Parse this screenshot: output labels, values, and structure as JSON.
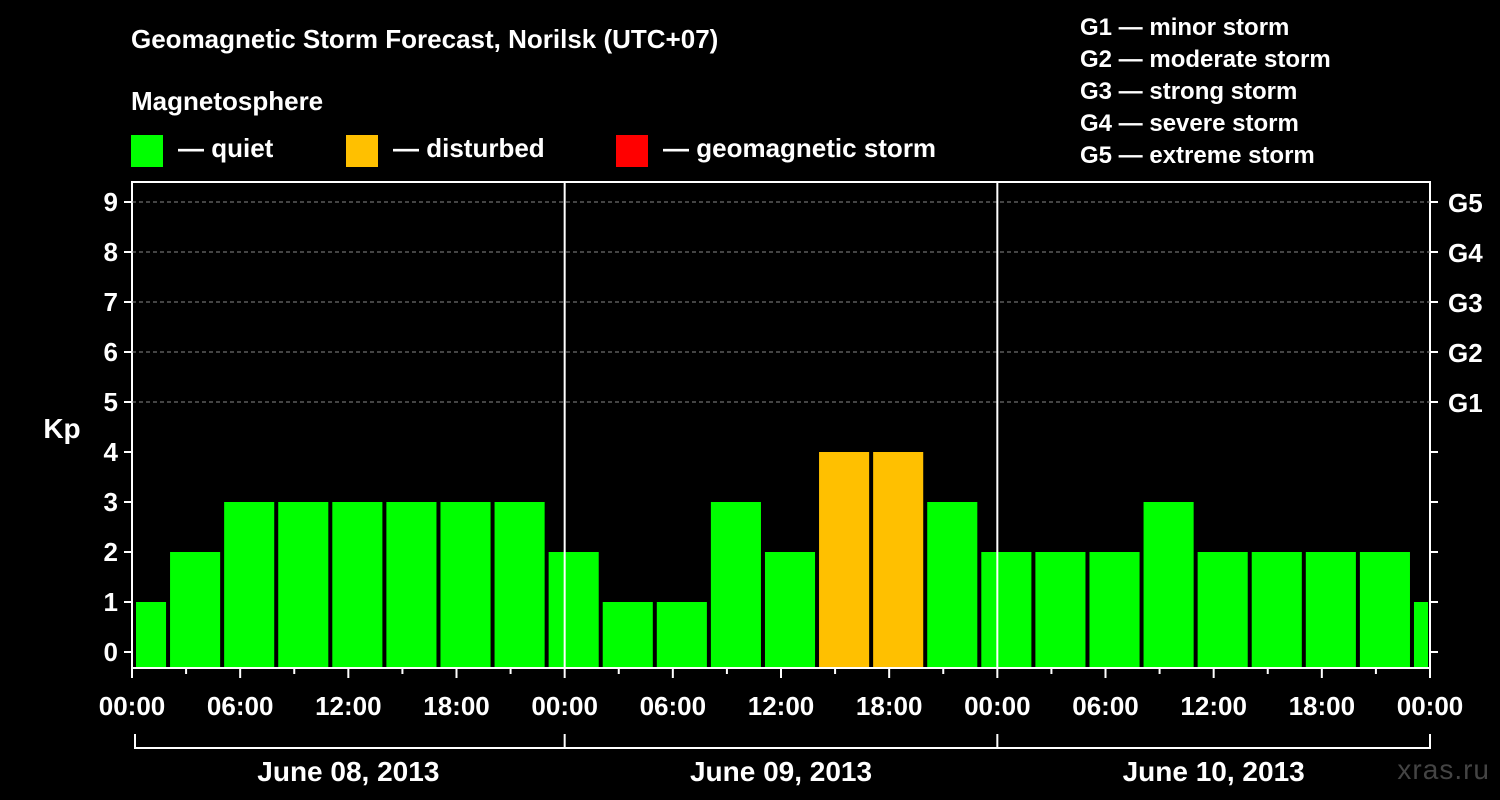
{
  "title": "Geomagnetic Storm Forecast, Norilsk (UTC+07)",
  "magnetosphere": {
    "heading": "Magnetosphere",
    "legend": [
      {
        "label": "— quiet",
        "color": "#00ff00"
      },
      {
        "label": "— disturbed",
        "color": "#ffc000"
      },
      {
        "label": "— geomagnetic storm",
        "color": "#ff0000"
      }
    ]
  },
  "storm_scale": [
    "G1 — minor storm",
    "G2 — moderate storm",
    "G3 — strong storm",
    "G4 — severe storm",
    "G5 — extreme storm"
  ],
  "watermark": "xras.ru",
  "chart_data": {
    "type": "bar",
    "ylabel": "Kp",
    "ylim": [
      0,
      9
    ],
    "yticks": [
      "0",
      "1",
      "2",
      "3",
      "4",
      "5",
      "6",
      "7",
      "8",
      "9"
    ],
    "right_ticks": [
      {
        "kp": 5,
        "label": "G1"
      },
      {
        "kp": 6,
        "label": "G2"
      },
      {
        "kp": 7,
        "label": "G3"
      },
      {
        "kp": 8,
        "label": "G4"
      },
      {
        "kp": 9,
        "label": "G5"
      }
    ],
    "x_tick_labels": [
      "00:00",
      "06:00",
      "12:00",
      "18:00",
      "00:00",
      "06:00",
      "12:00",
      "18:00",
      "00:00",
      "06:00",
      "12:00",
      "18:00",
      "00:00"
    ],
    "days": [
      "June 08, 2013",
      "June 09, 2013",
      "June 10, 2013"
    ],
    "interval_hours": 3,
    "first_bar_offset_hours": 2,
    "grid_dashed_from_kp": 5,
    "colors": {
      "quiet": "#00ff00",
      "disturbed": "#ffc000",
      "storm": "#ff0000"
    },
    "values": [
      1,
      2,
      3,
      3,
      3,
      3,
      3,
      3,
      2,
      1,
      1,
      3,
      2,
      4,
      4,
      3,
      2,
      2,
      2,
      3,
      2,
      2,
      2,
      2,
      1
    ]
  }
}
